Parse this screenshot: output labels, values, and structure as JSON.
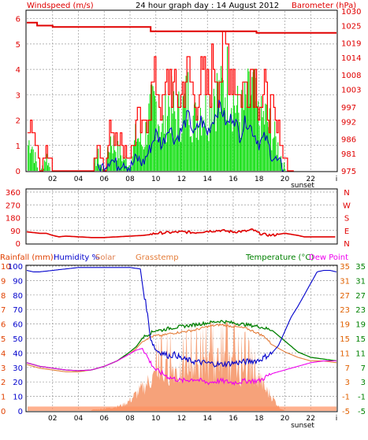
{
  "chart_data": [
    {
      "id": "top",
      "type": "line",
      "title": "24 hour graph day : 14 August 2012",
      "left_label": "Windspeed (m/s)",
      "right_label": "Barometer (hPa)",
      "left_ticks": [
        "0",
        "1",
        "2",
        "3",
        "4",
        "5",
        "6"
      ],
      "right_ticks": [
        "975",
        "981",
        "986",
        "992",
        "997",
        "1003",
        "1008",
        "1014",
        "1019",
        "1025",
        "1030"
      ],
      "ylim_left": [
        0,
        6.3
      ],
      "ylim_right": [
        975,
        1030
      ],
      "x_ticks": [
        "02",
        "04",
        "06",
        "08",
        "10",
        "12",
        "14",
        "16",
        "18",
        "20",
        "22"
      ],
      "sunset_label": "sunset",
      "end_tick": "i",
      "colors": {
        "barometer": "#e00000",
        "gust": "#ff0000",
        "average": "#0000cc",
        "wind": "#00dd00"
      },
      "series": [
        {
          "key": "barometer",
          "x": [
            0,
            0.8,
            0.8,
            2,
            2,
            9.6,
            9.6,
            17.8,
            17.8,
            21.5,
            21.5,
            24
          ],
          "values": [
            1026,
            1026,
            1025,
            1025,
            1024.5,
            1024.5,
            1023,
            1023,
            1022.5,
            1022.5,
            1022.5,
            1022.5
          ]
        },
        {
          "key": "gust_envelope",
          "x": [
            0,
            0.3,
            0.6,
            1,
            1.5,
            2,
            5,
            5.5,
            6,
            6.5,
            7,
            8,
            8.5,
            9,
            9.5,
            10,
            10.5,
            11,
            11.5,
            12,
            12.5,
            13,
            13.5,
            14,
            14.5,
            15,
            15.5,
            16,
            16.5,
            17,
            17.5,
            18,
            18.5,
            19,
            19.5,
            20,
            20.5,
            24
          ],
          "values": [
            1.6,
            2.2,
            1.2,
            0,
            1.2,
            0,
            0,
            1.2,
            0,
            2.2,
            1.5,
            0.6,
            2.4,
            1.8,
            3.5,
            4.2,
            2.6,
            4.4,
            3.4,
            3.7,
            4.6,
            3.1,
            4.1,
            3.6,
            5.2,
            4.4,
            5.6,
            4.6,
            3.4,
            4.1,
            4.9,
            3.1,
            3.4,
            2.6,
            1.6,
            0.4,
            0,
            0
          ]
        },
        {
          "key": "average",
          "x": [
            5.5,
            6,
            6.5,
            7,
            7.5,
            8,
            8.5,
            9,
            9.5,
            10,
            10.5,
            11,
            11.5,
            12,
            12.5,
            13,
            13.5,
            14,
            14.5,
            15,
            15.5,
            16,
            16.5,
            17,
            17.5,
            18,
            18.5,
            19,
            19.5,
            20
          ],
          "values": [
            0,
            0.2,
            0.5,
            0.2,
            0.4,
            0.1,
            0.5,
            0.3,
            0.8,
            1.5,
            1.0,
            1.8,
            1.2,
            1.6,
            2.2,
            1.4,
            2.0,
            1.5,
            2.1,
            2.6,
            1.8,
            2.2,
            1.4,
            2.0,
            1.6,
            1.1,
            1.3,
            0.6,
            0.3,
            0
          ]
        }
      ]
    },
    {
      "id": "middle",
      "type": "line",
      "left_ticks": [
        "0",
        "90",
        "180",
        "270",
        "360"
      ],
      "right_ticks": [
        "N",
        "E",
        "S",
        "W",
        "N"
      ],
      "ylim": [
        0,
        360
      ],
      "series": [
        {
          "key": "wind_direction",
          "x": [
            0,
            0.5,
            1,
            1.5,
            2,
            2.5,
            3,
            4,
            5,
            6,
            7,
            8,
            9,
            9.5,
            10,
            11,
            12,
            13,
            14,
            15,
            16,
            17,
            17.5,
            18,
            18.5,
            19,
            20,
            21,
            21.5,
            22,
            23,
            24
          ],
          "values": [
            80,
            75,
            70,
            70,
            55,
            45,
            50,
            45,
            40,
            40,
            45,
            50,
            55,
            60,
            70,
            75,
            80,
            75,
            85,
            90,
            80,
            85,
            95,
            70,
            60,
            55,
            70,
            55,
            45,
            45,
            45,
            45
          ]
        }
      ]
    },
    {
      "id": "bottom",
      "type": "line",
      "header_labels": {
        "rain": "Rainfall (mm)",
        "humidity": "Humidity %",
        "solar": "Solar",
        "grass": "Grasstemp",
        "temp": "Temperature (°C)",
        "dew": "Dew Point"
      },
      "left_ticks_rain": [
        "0",
        "1",
        "2",
        "3",
        "4",
        "5",
        "6",
        "7",
        "8",
        "9",
        "10"
      ],
      "left_ticks_hum": [
        "0",
        "10",
        "20",
        "30",
        "40",
        "50",
        "60",
        "70",
        "80",
        "90",
        "100"
      ],
      "right_ticks_a": [
        "-5",
        "-1",
        "3",
        "7",
        "11",
        "15",
        "19",
        "23",
        "27",
        "31",
        "35"
      ],
      "right_ticks_b": [
        "-5",
        "-1",
        "3",
        "7",
        "11",
        "15",
        "19",
        "23",
        "27",
        "31",
        "35"
      ],
      "ylim_humidity": [
        0,
        100
      ],
      "ylim_temp": [
        -5,
        35
      ],
      "x_ticks": [
        "02",
        "04",
        "06",
        "08",
        "10",
        "12",
        "14",
        "16",
        "18",
        "20",
        "22"
      ],
      "sunset_label": "sunset",
      "end_tick": "i",
      "colors": {
        "humidity": "#0000cc",
        "solar": "#f6a27a",
        "grass": "#e47d3a",
        "temp": "#008000",
        "dew": "#ee00ee",
        "rain": "#ff9060"
      },
      "series": [
        {
          "key": "humidity",
          "x": [
            0,
            0.5,
            1,
            2,
            3,
            4,
            5,
            6,
            7,
            8,
            8.8,
            9,
            9.3,
            9.6,
            10,
            10.5,
            11,
            11.5,
            12,
            13,
            14,
            15,
            16,
            17,
            18,
            19,
            19.5,
            20,
            20.5,
            21,
            21.5,
            22,
            22.5,
            23,
            23.5,
            24
          ],
          "values": [
            97,
            96,
            96,
            97,
            98,
            99,
            99,
            99,
            99,
            99,
            98,
            85,
            70,
            50,
            42,
            40,
            38,
            39,
            36,
            34,
            33,
            32,
            33,
            34,
            35,
            40,
            45,
            55,
            65,
            72,
            80,
            88,
            96,
            97,
            97,
            96
          ]
        },
        {
          "key": "temperature",
          "x": [
            0,
            1,
            2,
            3,
            4,
            5,
            6,
            7,
            8,
            8.5,
            9,
            9.5,
            10,
            10.5,
            11,
            12,
            13,
            14,
            15,
            16,
            17,
            18,
            18.5,
            19,
            20,
            21,
            22,
            23,
            24
          ],
          "values": [
            8.3,
            7.3,
            6.8,
            6.3,
            6.1,
            6.3,
            7.3,
            8.8,
            11.3,
            12.8,
            15.3,
            16.3,
            17.3,
            17.3,
            17.8,
            18.3,
            18.8,
            19.3,
            19.8,
            19.3,
            18.8,
            18.3,
            17.8,
            17.3,
            14.3,
            11.3,
            9.8,
            9.3,
            8.8
          ]
        },
        {
          "key": "grasstemp",
          "x": [
            0,
            1,
            2,
            3,
            4,
            5,
            6,
            7,
            8,
            8.5,
            9,
            9.5,
            10,
            10.5,
            11,
            12,
            13,
            14,
            15,
            16,
            17,
            18,
            18.5,
            19,
            20,
            21,
            22,
            23,
            24
          ],
          "values": [
            7.8,
            6.8,
            6.3,
            5.8,
            5.8,
            6.3,
            7.3,
            8.8,
            10.8,
            12.3,
            14.3,
            15.3,
            15.8,
            15.8,
            16.3,
            16.8,
            17.3,
            18.3,
            18.8,
            18.3,
            17.8,
            16.3,
            15.3,
            13.3,
            11.3,
            9.8,
            8.8,
            8.8,
            8.3
          ]
        },
        {
          "key": "dewpoint",
          "x": [
            0,
            1,
            2,
            3,
            4,
            5,
            6,
            7,
            8,
            8.5,
            9,
            9.5,
            10,
            10.5,
            11,
            12,
            13,
            14,
            15,
            16,
            17,
            18,
            19,
            20,
            21,
            22,
            23,
            24
          ],
          "values": [
            8.3,
            7.3,
            6.8,
            6.3,
            6.1,
            6.3,
            7.3,
            8.8,
            10.8,
            11.8,
            12.3,
            8.8,
            6.3,
            5.3,
            4.3,
            3.3,
            3.8,
            2.8,
            3.3,
            2.8,
            3.3,
            3.3,
            5.3,
            6.3,
            7.3,
            8.3,
            8.8,
            8.8
          ]
        },
        {
          "key": "solar",
          "x": [
            5,
            6,
            7,
            7.5,
            8,
            8.3,
            8.6,
            9,
            9.3,
            9.6,
            10,
            10.5,
            11,
            11.5,
            12,
            12.5,
            13,
            13.5,
            14,
            14.5,
            15,
            15.5,
            16,
            16.5,
            17,
            17.5,
            18,
            18.5,
            19,
            19.3,
            19.6,
            20
          ],
          "values": [
            1,
            2,
            4,
            6,
            10,
            14,
            17,
            22,
            26,
            30,
            33,
            36,
            38,
            40,
            34,
            42,
            44,
            38,
            46,
            40,
            48,
            42,
            44,
            36,
            38,
            28,
            32,
            20,
            14,
            8,
            3,
            0
          ]
        },
        {
          "key": "rainfall",
          "x": [
            0,
            24
          ],
          "values": [
            0.3,
            0.3
          ]
        }
      ]
    }
  ]
}
